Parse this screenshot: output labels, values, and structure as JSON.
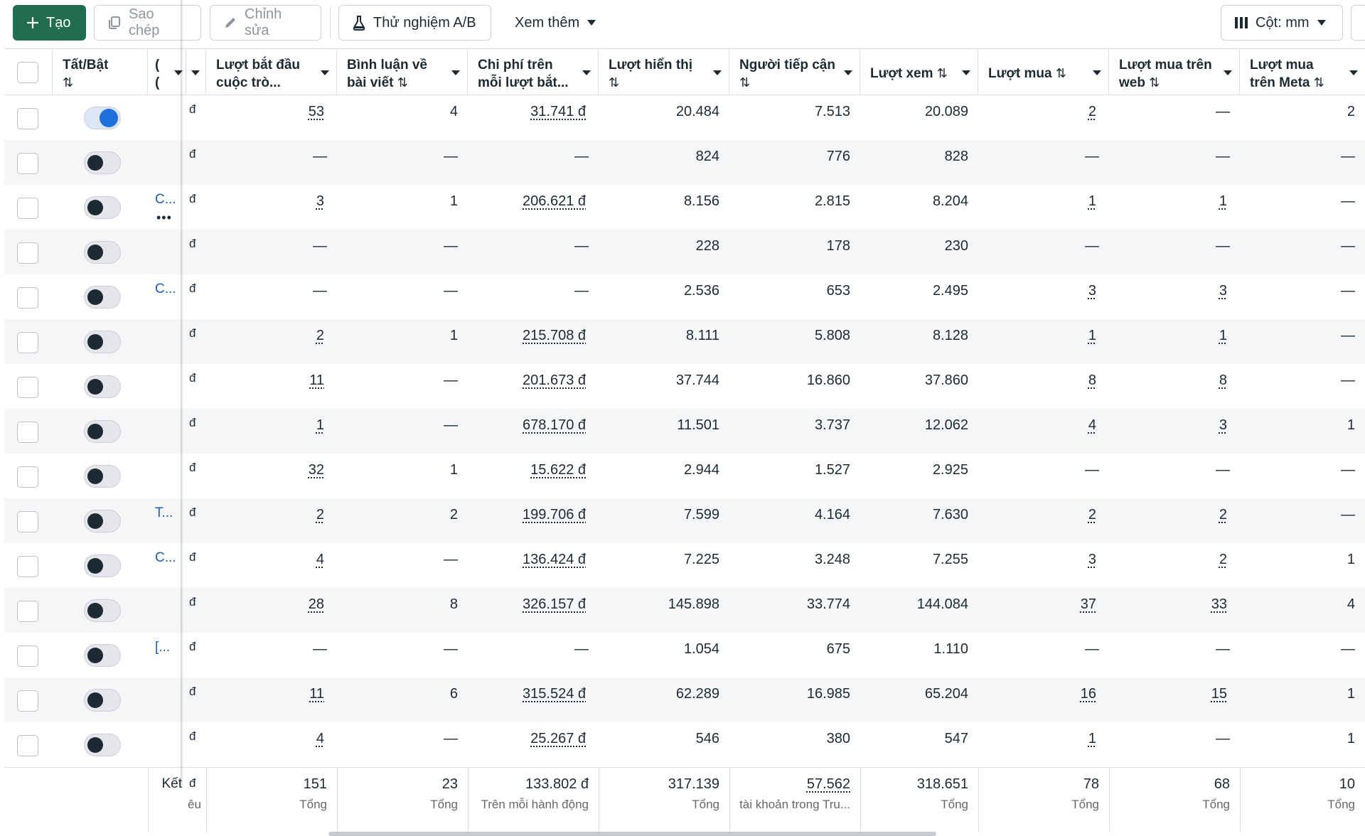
{
  "toolbar": {
    "create_label": "Tạo",
    "copy_label": "Sao chép",
    "edit_label": "Chỉnh sửa",
    "ab_test_label": "Thử nghiệm A/B",
    "more_label": "Xem thêm",
    "columns_label": "Cột: mm"
  },
  "columns": {
    "onoff": "Tất/Bật",
    "name": "(",
    "name2": "(",
    "currency": "",
    "conv": "Lượt bắt đầu cuộc trò...",
    "comments": "Bình luận về bài viết",
    "cost": "Chi phí trên mỗi lượt bắt...",
    "impr": "Lượt hiển thị",
    "reach": "Người tiếp cận",
    "views": "Lượt xem",
    "purch": "Lượt mua",
    "web": "Lượt mua trên web",
    "meta": "Lượt mua trên Meta",
    "sort_glyph": "⇅"
  },
  "rows": [
    {
      "on": true,
      "name": "",
      "more": "",
      "d": "đ",
      "conv": "53",
      "comments": "4",
      "cost": "31.741 đ",
      "impr": "20.484",
      "reach": "7.513",
      "views": "20.089",
      "purch": "2",
      "web": "—",
      "meta": "2"
    },
    {
      "on": false,
      "name": "",
      "more": "",
      "d": "đ",
      "conv": "—",
      "comments": "—",
      "cost": "—",
      "impr": "824",
      "reach": "776",
      "views": "828",
      "purch": "—",
      "web": "—",
      "meta": "—"
    },
    {
      "on": false,
      "name": "C...",
      "more": "•••",
      "d": "đ",
      "conv": "3",
      "comments": "1",
      "cost": "206.621 đ",
      "impr": "8.156",
      "reach": "2.815",
      "views": "8.204",
      "purch": "1",
      "web": "1",
      "meta": "—"
    },
    {
      "on": false,
      "name": "",
      "more": "",
      "d": "đ",
      "conv": "—",
      "comments": "—",
      "cost": "—",
      "impr": "228",
      "reach": "178",
      "views": "230",
      "purch": "—",
      "web": "—",
      "meta": "—"
    },
    {
      "on": false,
      "name": "C...",
      "more": "",
      "d": "đ",
      "conv": "—",
      "comments": "—",
      "cost": "—",
      "impr": "2.536",
      "reach": "653",
      "views": "2.495",
      "purch": "3",
      "web": "3",
      "meta": "—"
    },
    {
      "on": false,
      "name": "",
      "more": "",
      "d": "đ",
      "conv": "2",
      "comments": "1",
      "cost": "215.708 đ",
      "impr": "8.111",
      "reach": "5.808",
      "views": "8.128",
      "purch": "1",
      "web": "1",
      "meta": "—"
    },
    {
      "on": false,
      "name": "",
      "more": "",
      "d": "đ",
      "conv": "11",
      "comments": "—",
      "cost": "201.673 đ",
      "impr": "37.744",
      "reach": "16.860",
      "views": "37.860",
      "purch": "8",
      "web": "8",
      "meta": "—"
    },
    {
      "on": false,
      "name": "",
      "more": "",
      "d": "đ",
      "conv": "1",
      "comments": "—",
      "cost": "678.170 đ",
      "impr": "11.501",
      "reach": "3.737",
      "views": "12.062",
      "purch": "4",
      "web": "3",
      "meta": "1"
    },
    {
      "on": false,
      "name": "",
      "more": "",
      "d": "đ",
      "conv": "32",
      "comments": "1",
      "cost": "15.622 đ",
      "impr": "2.944",
      "reach": "1.527",
      "views": "2.925",
      "purch": "—",
      "web": "—",
      "meta": "—"
    },
    {
      "on": false,
      "name": "T...",
      "more": "",
      "d": "đ",
      "conv": "2",
      "comments": "2",
      "cost": "199.706 đ",
      "impr": "7.599",
      "reach": "4.164",
      "views": "7.630",
      "purch": "2",
      "web": "2",
      "meta": "—"
    },
    {
      "on": false,
      "name": "C...",
      "more": "",
      "d": "đ",
      "conv": "4",
      "comments": "—",
      "cost": "136.424 đ",
      "impr": "7.225",
      "reach": "3.248",
      "views": "7.255",
      "purch": "3",
      "web": "2",
      "meta": "1"
    },
    {
      "on": false,
      "name": "",
      "more": "",
      "d": "đ",
      "conv": "28",
      "comments": "8",
      "cost": "326.157 đ",
      "impr": "145.898",
      "reach": "33.774",
      "views": "144.084",
      "purch": "37",
      "web": "33",
      "meta": "4"
    },
    {
      "on": false,
      "name": "[...",
      "more": "",
      "d": "đ",
      "conv": "—",
      "comments": "—",
      "cost": "—",
      "impr": "1.054",
      "reach": "675",
      "views": "1.110",
      "purch": "—",
      "web": "—",
      "meta": "—"
    },
    {
      "on": false,
      "name": "",
      "more": "",
      "d": "đ",
      "conv": "11",
      "comments": "6",
      "cost": "315.524 đ",
      "impr": "62.289",
      "reach": "16.985",
      "views": "65.204",
      "purch": "16",
      "web": "15",
      "meta": "1"
    },
    {
      "on": false,
      "name": "",
      "more": "",
      "d": "đ",
      "conv": "4",
      "comments": "—",
      "cost": "25.267 đ",
      "impr": "546",
      "reach": "380",
      "views": "547",
      "purch": "1",
      "web": "—",
      "meta": "1"
    }
  ],
  "footer": {
    "name": "Kết",
    "d": "đ",
    "d_sub": "êu",
    "conv": "151",
    "conv_sub": "Tổng",
    "comments": "23",
    "comments_sub": "Tổng",
    "cost": "133.802 đ",
    "cost_sub": "Trên mỗi hành động",
    "impr": "317.139",
    "impr_sub": "Tổng",
    "reach": "57.562",
    "reach_sub": "tài khoản trong Tru...",
    "views": "318.651",
    "views_sub": "Tổng",
    "purch": "78",
    "purch_sub": "Tổng",
    "web": "68",
    "web_sub": "Tổng",
    "meta": "10",
    "meta_sub": "Tổng"
  },
  "colors": {
    "primary": "#216e4e",
    "link": "#1d5fb3",
    "toggle_on": "#1e6fd9",
    "row_alt": "#f5f6f7"
  }
}
